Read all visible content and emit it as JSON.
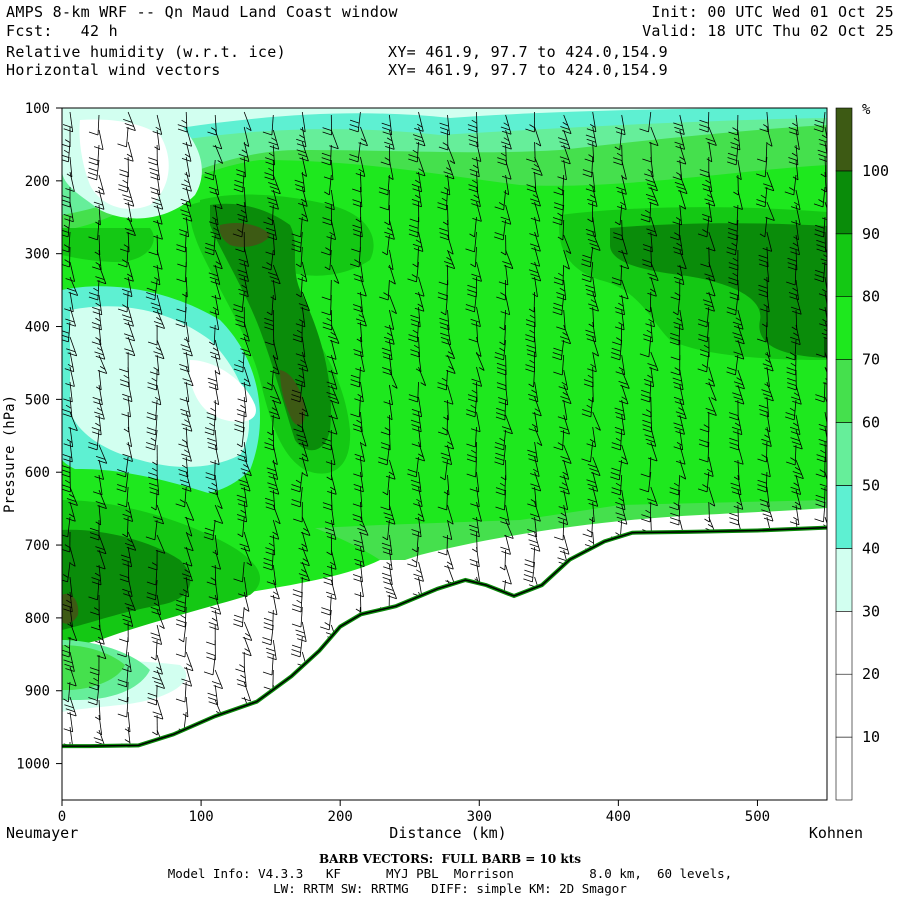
{
  "header": {
    "title": "AMPS 8-km WRF -- Qn Maud Land Coast window",
    "fcst": "Fcst:   42 h",
    "init": "Init: 00 UTC Wed 01 Oct 25",
    "valid": "Valid: 18 UTC Thu 02 Oct 25",
    "field1": "Relative humidity (w.r.t. ice)",
    "field2": "Horizontal wind vectors",
    "xy1": "XY= 461.9, 97.7 to 424.0,154.9",
    "xy2": "XY= 461.9, 97.7 to 424.0,154.9"
  },
  "footer": {
    "barb_note": "BARB VECTORS:  FULL BARB = 10 kts",
    "model_line1": "Model Info: V4.3.3   KF      MYJ PBL  Morrison          8.0 km,  60 levels,",
    "model_line2": "LW: RRTM SW: RRTMG   DIFF: simple KM: 2D Smagor"
  },
  "colors": {
    "white": "#ffffff",
    "rh30": "#d2fff0",
    "rh40": "#5ef0d2",
    "rh50": "#66ee9a",
    "rh60": "#45e04d",
    "rh70": "#1ee81e",
    "rh80": "#14c814",
    "rh90": "#0a8c0a",
    "rh100": "#3d5a14",
    "terrain": "#0a8a0a"
  },
  "chart_data": {
    "type": "heatmap",
    "title": "Relative humidity (w.r.t. ice)",
    "xlabel": "Distance (km)",
    "ylabel": "Pressure (hPa)",
    "x_range": [
      0,
      550
    ],
    "y_range": [
      1050,
      100
    ],
    "x_ticks": [
      0,
      100,
      200,
      300,
      400,
      500
    ],
    "y_ticks": [
      100,
      200,
      300,
      400,
      500,
      600,
      700,
      800,
      900,
      1000
    ],
    "x_tick_labels": [
      "0",
      "100",
      "200",
      "300",
      "400",
      "500"
    ],
    "y_tick_labels": [
      "100",
      "200",
      "300",
      "400",
      "500",
      "600",
      "700",
      "800",
      "900",
      "1000"
    ],
    "left_endpoint": "Neumayer",
    "right_endpoint": "Kohnen",
    "colorbar": {
      "unit": "%",
      "levels": [
        10,
        20,
        30,
        40,
        50,
        60,
        70,
        80,
        90,
        100
      ],
      "labels": [
        "10",
        "20",
        "30",
        "40",
        "50",
        "60",
        "70",
        "80",
        "90",
        "100"
      ]
    },
    "terrain_surface_hPa": {
      "distance_km": [
        0,
        20,
        55,
        80,
        110,
        140,
        165,
        185,
        200,
        215,
        240,
        270,
        290,
        305,
        325,
        345,
        365,
        390,
        410,
        450,
        500,
        550
      ],
      "pressure_hPa": [
        976,
        976,
        975,
        960,
        935,
        915,
        880,
        845,
        812,
        795,
        784,
        760,
        748,
        755,
        770,
        755,
        720,
        695,
        683,
        682,
        680,
        676
      ]
    },
    "wind_barbs": "present (full barb = 10 kts)"
  }
}
